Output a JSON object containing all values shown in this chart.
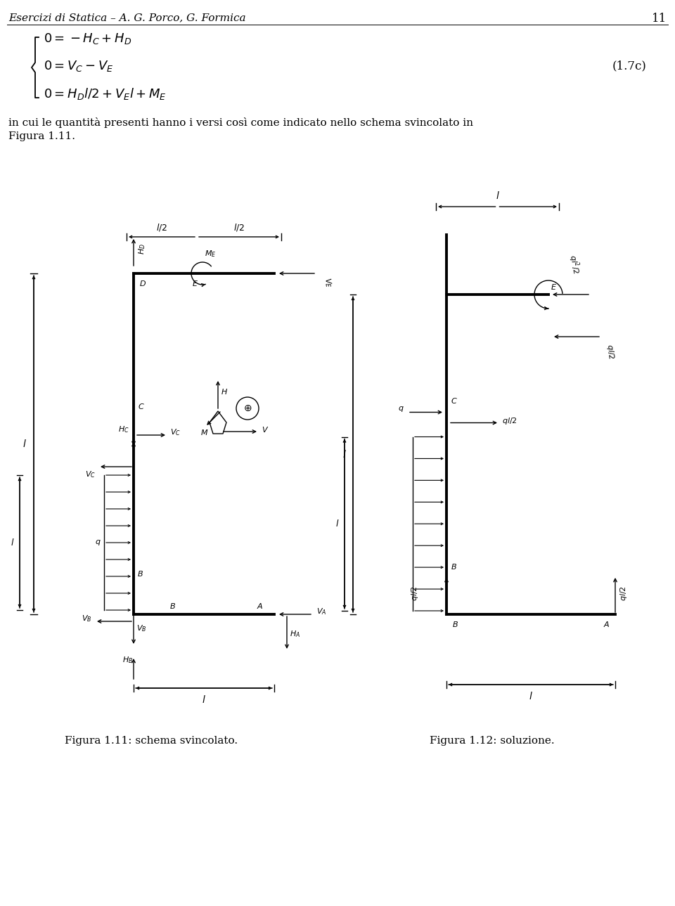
{
  "title_text": "Esercizi di Statica – A. G. Porco, G. Formica",
  "page_number": "11",
  "eq_label": "(1.7c)",
  "fig11_caption": "Figura 1.11: schema svincolato.",
  "fig12_caption": "Figura 1.12: soluzione.",
  "bg_color": "#ffffff",
  "line_color": "#000000"
}
